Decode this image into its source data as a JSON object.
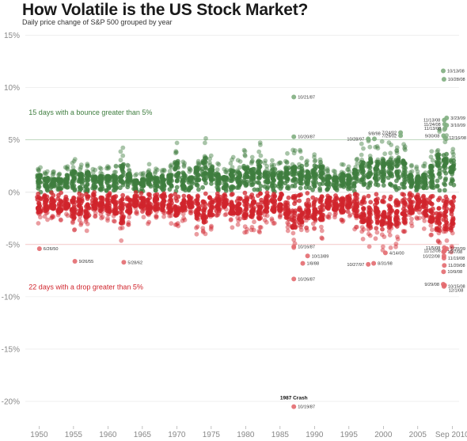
{
  "header": {
    "title": "How Volatile is the US Stock Market?",
    "subtitle": "Daily price change of  S&P 500 grouped by year"
  },
  "chart_data": {
    "type": "scatter",
    "title": "How Volatile is the US Stock Market?",
    "subtitle": "Daily price change of  S&P 500 grouped by year",
    "x_range": [
      1948,
      2011
    ],
    "ylim": [
      -22.5,
      15.5
    ],
    "y_ticks": [
      {
        "value": 15,
        "label": "15%"
      },
      {
        "value": 10,
        "label": "10%"
      },
      {
        "value": 5,
        "label": "5%"
      },
      {
        "value": 0,
        "label": "0%"
      },
      {
        "value": -5,
        "label": "-5%"
      },
      {
        "value": -10,
        "label": "-10%"
      },
      {
        "value": -15,
        "label": "-15%"
      },
      {
        "value": -20,
        "label": "-20%"
      }
    ],
    "x_ticks": [
      {
        "value": 1950,
        "label": "1950"
      },
      {
        "value": 1955,
        "label": "1955"
      },
      {
        "value": 1960,
        "label": "1960"
      },
      {
        "value": 1965,
        "label": "1965"
      },
      {
        "value": 1970,
        "label": "1970"
      },
      {
        "value": 1975,
        "label": "1975"
      },
      {
        "value": 1980,
        "label": "1980"
      },
      {
        "value": 1985,
        "label": "1985"
      },
      {
        "value": 1990,
        "label": "1990"
      },
      {
        "value": 1995,
        "label": "1995"
      },
      {
        "value": 2000,
        "label": "2000"
      },
      {
        "value": 2005,
        "label": "2005"
      },
      {
        "value": 2010,
        "label": "Sep 2010"
      }
    ],
    "reference_lines": [
      5,
      -5
    ],
    "colors": {
      "up": "#3f7d3f",
      "down": "#d0242c",
      "up_note": "#3f7d3f",
      "down_note": "#d0242c"
    },
    "yearly_range": [
      {
        "year": 1950,
        "up": 2.0,
        "down": -2.3
      },
      {
        "year": 1951,
        "up": 1.6,
        "down": -2.1
      },
      {
        "year": 1952,
        "up": 1.5,
        "down": -1.9
      },
      {
        "year": 1953,
        "up": 1.5,
        "down": -2.3
      },
      {
        "year": 1954,
        "up": 2.0,
        "down": -1.8
      },
      {
        "year": 1955,
        "up": 2.4,
        "down": -3.0
      },
      {
        "year": 1956,
        "up": 2.1,
        "down": -2.5
      },
      {
        "year": 1957,
        "up": 2.3,
        "down": -2.9
      },
      {
        "year": 1958,
        "up": 1.8,
        "down": -1.9
      },
      {
        "year": 1959,
        "up": 1.8,
        "down": -2.1
      },
      {
        "year": 1960,
        "up": 1.9,
        "down": -2.2
      },
      {
        "year": 1961,
        "up": 1.9,
        "down": -2.4
      },
      {
        "year": 1962,
        "up": 3.2,
        "down": -3.5
      },
      {
        "year": 1963,
        "up": 2.2,
        "down": -2.4
      },
      {
        "year": 1964,
        "up": 1.3,
        "down": -1.6
      },
      {
        "year": 1965,
        "up": 1.5,
        "down": -1.8
      },
      {
        "year": 1966,
        "up": 2.1,
        "down": -2.4
      },
      {
        "year": 1967,
        "up": 1.7,
        "down": -2.0
      },
      {
        "year": 1968,
        "up": 1.9,
        "down": -2.0
      },
      {
        "year": 1969,
        "up": 2.0,
        "down": -2.3
      },
      {
        "year": 1970,
        "up": 3.5,
        "down": -3.0
      },
      {
        "year": 1971,
        "up": 2.2,
        "down": -2.1
      },
      {
        "year": 1972,
        "up": 1.7,
        "down": -1.7
      },
      {
        "year": 1973,
        "up": 2.8,
        "down": -3.0
      },
      {
        "year": 1974,
        "up": 3.9,
        "down": -3.5
      },
      {
        "year": 1975,
        "up": 2.9,
        "down": -2.7
      },
      {
        "year": 1976,
        "up": 2.1,
        "down": -2.2
      },
      {
        "year": 1977,
        "up": 1.7,
        "down": -1.7
      },
      {
        "year": 1978,
        "up": 2.5,
        "down": -2.5
      },
      {
        "year": 1979,
        "up": 2.3,
        "down": -2.5
      },
      {
        "year": 1980,
        "up": 3.0,
        "down": -3.3
      },
      {
        "year": 1981,
        "up": 2.6,
        "down": -2.8
      },
      {
        "year": 1982,
        "up": 3.6,
        "down": -3.0
      },
      {
        "year": 1983,
        "up": 2.4,
        "down": -2.2
      },
      {
        "year": 1984,
        "up": 2.8,
        "down": -2.3
      },
      {
        "year": 1985,
        "up": 2.2,
        "down": -2.1
      },
      {
        "year": 1986,
        "up": 2.8,
        "down": -3.2
      },
      {
        "year": 1987,
        "up": 3.0,
        "down": -4.0
      },
      {
        "year": 1988,
        "up": 3.0,
        "down": -3.5
      },
      {
        "year": 1989,
        "up": 2.4,
        "down": -3.0
      },
      {
        "year": 1990,
        "up": 3.0,
        "down": -3.1
      },
      {
        "year": 1991,
        "up": 3.0,
        "down": -3.3
      },
      {
        "year": 1992,
        "up": 1.8,
        "down": -1.9
      },
      {
        "year": 1993,
        "up": 1.7,
        "down": -2.0
      },
      {
        "year": 1994,
        "up": 2.1,
        "down": -2.3
      },
      {
        "year": 1995,
        "up": 1.9,
        "down": -1.8
      },
      {
        "year": 1996,
        "up": 2.6,
        "down": -2.8
      },
      {
        "year": 1997,
        "up": 3.5,
        "down": -3.5
      },
      {
        "year": 1998,
        "up": 3.8,
        "down": -4.0
      },
      {
        "year": 1999,
        "up": 3.5,
        "down": -3.5
      },
      {
        "year": 2000,
        "up": 3.6,
        "down": -4.2
      },
      {
        "year": 2001,
        "up": 3.7,
        "down": -4.0
      },
      {
        "year": 2002,
        "up": 4.0,
        "down": -4.2
      },
      {
        "year": 2003,
        "up": 3.6,
        "down": -3.5
      },
      {
        "year": 2004,
        "up": 2.0,
        "down": -2.4
      },
      {
        "year": 2005,
        "up": 1.8,
        "down": -2.1
      },
      {
        "year": 2006,
        "up": 2.1,
        "down": -2.6
      },
      {
        "year": 2007,
        "up": 3.0,
        "down": -3.4
      },
      {
        "year": 2008,
        "up": 4.5,
        "down": -4.5
      },
      {
        "year": 2009,
        "up": 4.5,
        "down": -4.2
      },
      {
        "year": 2010,
        "up": 3.6,
        "down": -4.3
      }
    ],
    "annotations": [
      {
        "year": 1950.05,
        "value": -5.4,
        "label": "6/26/50",
        "side": "right"
      },
      {
        "year": 1955.2,
        "value": -6.6,
        "label": "9/26/55",
        "side": "right"
      },
      {
        "year": 1962.3,
        "value": -6.7,
        "label": "5/28/62",
        "side": "right"
      },
      {
        "year": 1987.0,
        "value": 9.1,
        "label": "10/21/87",
        "side": "right"
      },
      {
        "year": 1987.0,
        "value": 5.3,
        "label": "10/20/87",
        "side": "right"
      },
      {
        "year": 1987.0,
        "value": -5.2,
        "label": "10/16/87",
        "side": "right"
      },
      {
        "year": 1989.0,
        "value": -6.1,
        "label": "10/13/89",
        "side": "right"
      },
      {
        "year": 1988.3,
        "value": -6.8,
        "label": "1/8/88",
        "side": "right"
      },
      {
        "year": 1987.0,
        "value": -8.3,
        "label": "10/26/87",
        "side": "right"
      },
      {
        "year": 1987.0,
        "value": -20.5,
        "label": "10/19/87",
        "side": "right"
      },
      {
        "year": 1997.8,
        "value": 5.1,
        "label": "10/28/97",
        "side": "left"
      },
      {
        "year": 1998.7,
        "value": 5.1,
        "label": "9/8/98",
        "side": "above"
      },
      {
        "year": 1997.8,
        "value": -6.9,
        "label": "10/27/97",
        "side": "left"
      },
      {
        "year": 1998.6,
        "value": -6.8,
        "label": "8/31/98",
        "side": "right"
      },
      {
        "year": 2000.3,
        "value": -5.8,
        "label": "4/14/00",
        "side": "right"
      },
      {
        "year": 2002.5,
        "value": 5.7,
        "label": "7/24/02",
        "side": "left"
      },
      {
        "year": 2002.5,
        "value": 5.4,
        "label": "7/29/02",
        "side": "left"
      },
      {
        "year": 2008.7,
        "value": 11.6,
        "label": "10/13/08",
        "side": "right"
      },
      {
        "year": 2008.8,
        "value": 10.8,
        "label": "10/28/08",
        "side": "right"
      },
      {
        "year": 2008.85,
        "value": 6.9,
        "label": "11/13/08",
        "side": "left"
      },
      {
        "year": 2008.9,
        "value": 6.5,
        "label": "11/24/08",
        "side": "left"
      },
      {
        "year": 2008.95,
        "value": 6.1,
        "label": "11/13/08",
        "side": "left"
      },
      {
        "year": 2008.75,
        "value": 5.4,
        "label": "9/30/08",
        "side": "left"
      },
      {
        "year": 2009.2,
        "value": 7.1,
        "label": "3/23/09",
        "side": "right"
      },
      {
        "year": 2009.2,
        "value": 6.4,
        "label": "3/10/09",
        "side": "right"
      },
      {
        "year": 2008.95,
        "value": 5.2,
        "label": "12/16/08",
        "side": "right"
      },
      {
        "year": 2008.85,
        "value": -5.3,
        "label": "11/5/08",
        "side": "left"
      },
      {
        "year": 2008.9,
        "value": -5.6,
        "label": "11/12/08",
        "side": "left"
      },
      {
        "year": 2008.8,
        "value": -6.1,
        "label": "10/22/08",
        "side": "left"
      },
      {
        "year": 2009.2,
        "value": -5.4,
        "label": "1/20/09",
        "side": "right"
      },
      {
        "year": 2008.75,
        "value": -5.7,
        "label": "10/7/08",
        "side": "right"
      },
      {
        "year": 2008.8,
        "value": -6.3,
        "label": "11/19/08",
        "side": "right"
      },
      {
        "year": 2008.85,
        "value": -7.0,
        "label": "11/20/08",
        "side": "right"
      },
      {
        "year": 2008.75,
        "value": -7.6,
        "label": "10/9/08",
        "side": "right"
      },
      {
        "year": 2008.7,
        "value": -8.8,
        "label": "9/29/08",
        "side": "left"
      },
      {
        "year": 2008.8,
        "value": -9.0,
        "label": "10/15/08",
        "side": "right"
      },
      {
        "year": 2008.9,
        "value": -8.9,
        "label": "12/1/08",
        "side": "below"
      }
    ],
    "notes": [
      {
        "text": "15 days with a bounce greater than 5%",
        "kind": "up",
        "value": 7.4,
        "year": 1948.5
      },
      {
        "text": "22 days with a drop greater than 5%",
        "kind": "down",
        "value": -9.3,
        "year": 1948.5
      },
      {
        "text": "1987 Crash",
        "kind": "crash",
        "value": -19.8,
        "year": 1987.0
      }
    ]
  }
}
